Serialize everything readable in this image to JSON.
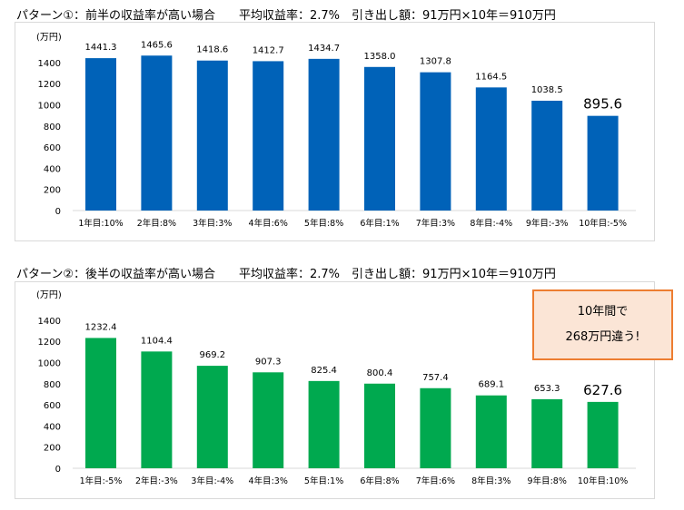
{
  "panels": [
    {
      "title": "パターン①：前半の収益率が高い場合　　平均収益率：2.7%　引き出し額：91万円×10年＝910万円"
    },
    {
      "title": "パターン②：後半の収益率が高い場合　　平均収益率：2.7%　引き出し額：91万円×10年＝910万円"
    }
  ],
  "callout": {
    "line1": "10年間で",
    "line2": "268万円違う!"
  },
  "chart_data": [
    {
      "type": "bar",
      "color": "#0062b8",
      "unit_label": "(万円)",
      "ylim": [
        0,
        1600
      ],
      "yticks": [
        0,
        200,
        400,
        600,
        800,
        1000,
        1200,
        1400
      ],
      "categories": [
        "1年目:10%",
        "2年目:8%",
        "3年目:3%",
        "4年目:6%",
        "5年目:8%",
        "6年目:1%",
        "7年目:3%",
        "8年目:-4%",
        "9年目:-3%",
        "10年目:-5%"
      ],
      "values": [
        1441.3,
        1465.6,
        1418.6,
        1412.7,
        1434.7,
        1358.0,
        1307.8,
        1164.5,
        1038.5,
        895.6
      ],
      "labels": [
        "1441.3",
        "1465.6",
        "1418.6",
        "1412.7",
        "1434.7",
        "1358.0",
        "1307.8",
        "1164.5",
        "1038.5",
        "895.6"
      ],
      "highlight_last": true
    },
    {
      "type": "bar",
      "color": "#00a94f",
      "unit_label": "(万円)",
      "ylim": [
        0,
        1600
      ],
      "yticks": [
        0,
        200,
        400,
        600,
        800,
        1000,
        1200,
        1400
      ],
      "categories": [
        "1年目:-5%",
        "2年目:-3%",
        "3年目:-4%",
        "4年目:3%",
        "5年目:1%",
        "6年目:8%",
        "7年目:6%",
        "8年目:3%",
        "9年目:8%",
        "10年目:10%"
      ],
      "values": [
        1232.4,
        1104.4,
        969.2,
        907.3,
        825.4,
        800.4,
        757.4,
        689.1,
        653.3,
        627.6
      ],
      "labels": [
        "1232.4",
        "1104.4",
        "969.2",
        "907.3",
        "825.4",
        "800.4",
        "757.4",
        "689.1",
        "653.3",
        "627.6"
      ],
      "highlight_last": true
    }
  ]
}
